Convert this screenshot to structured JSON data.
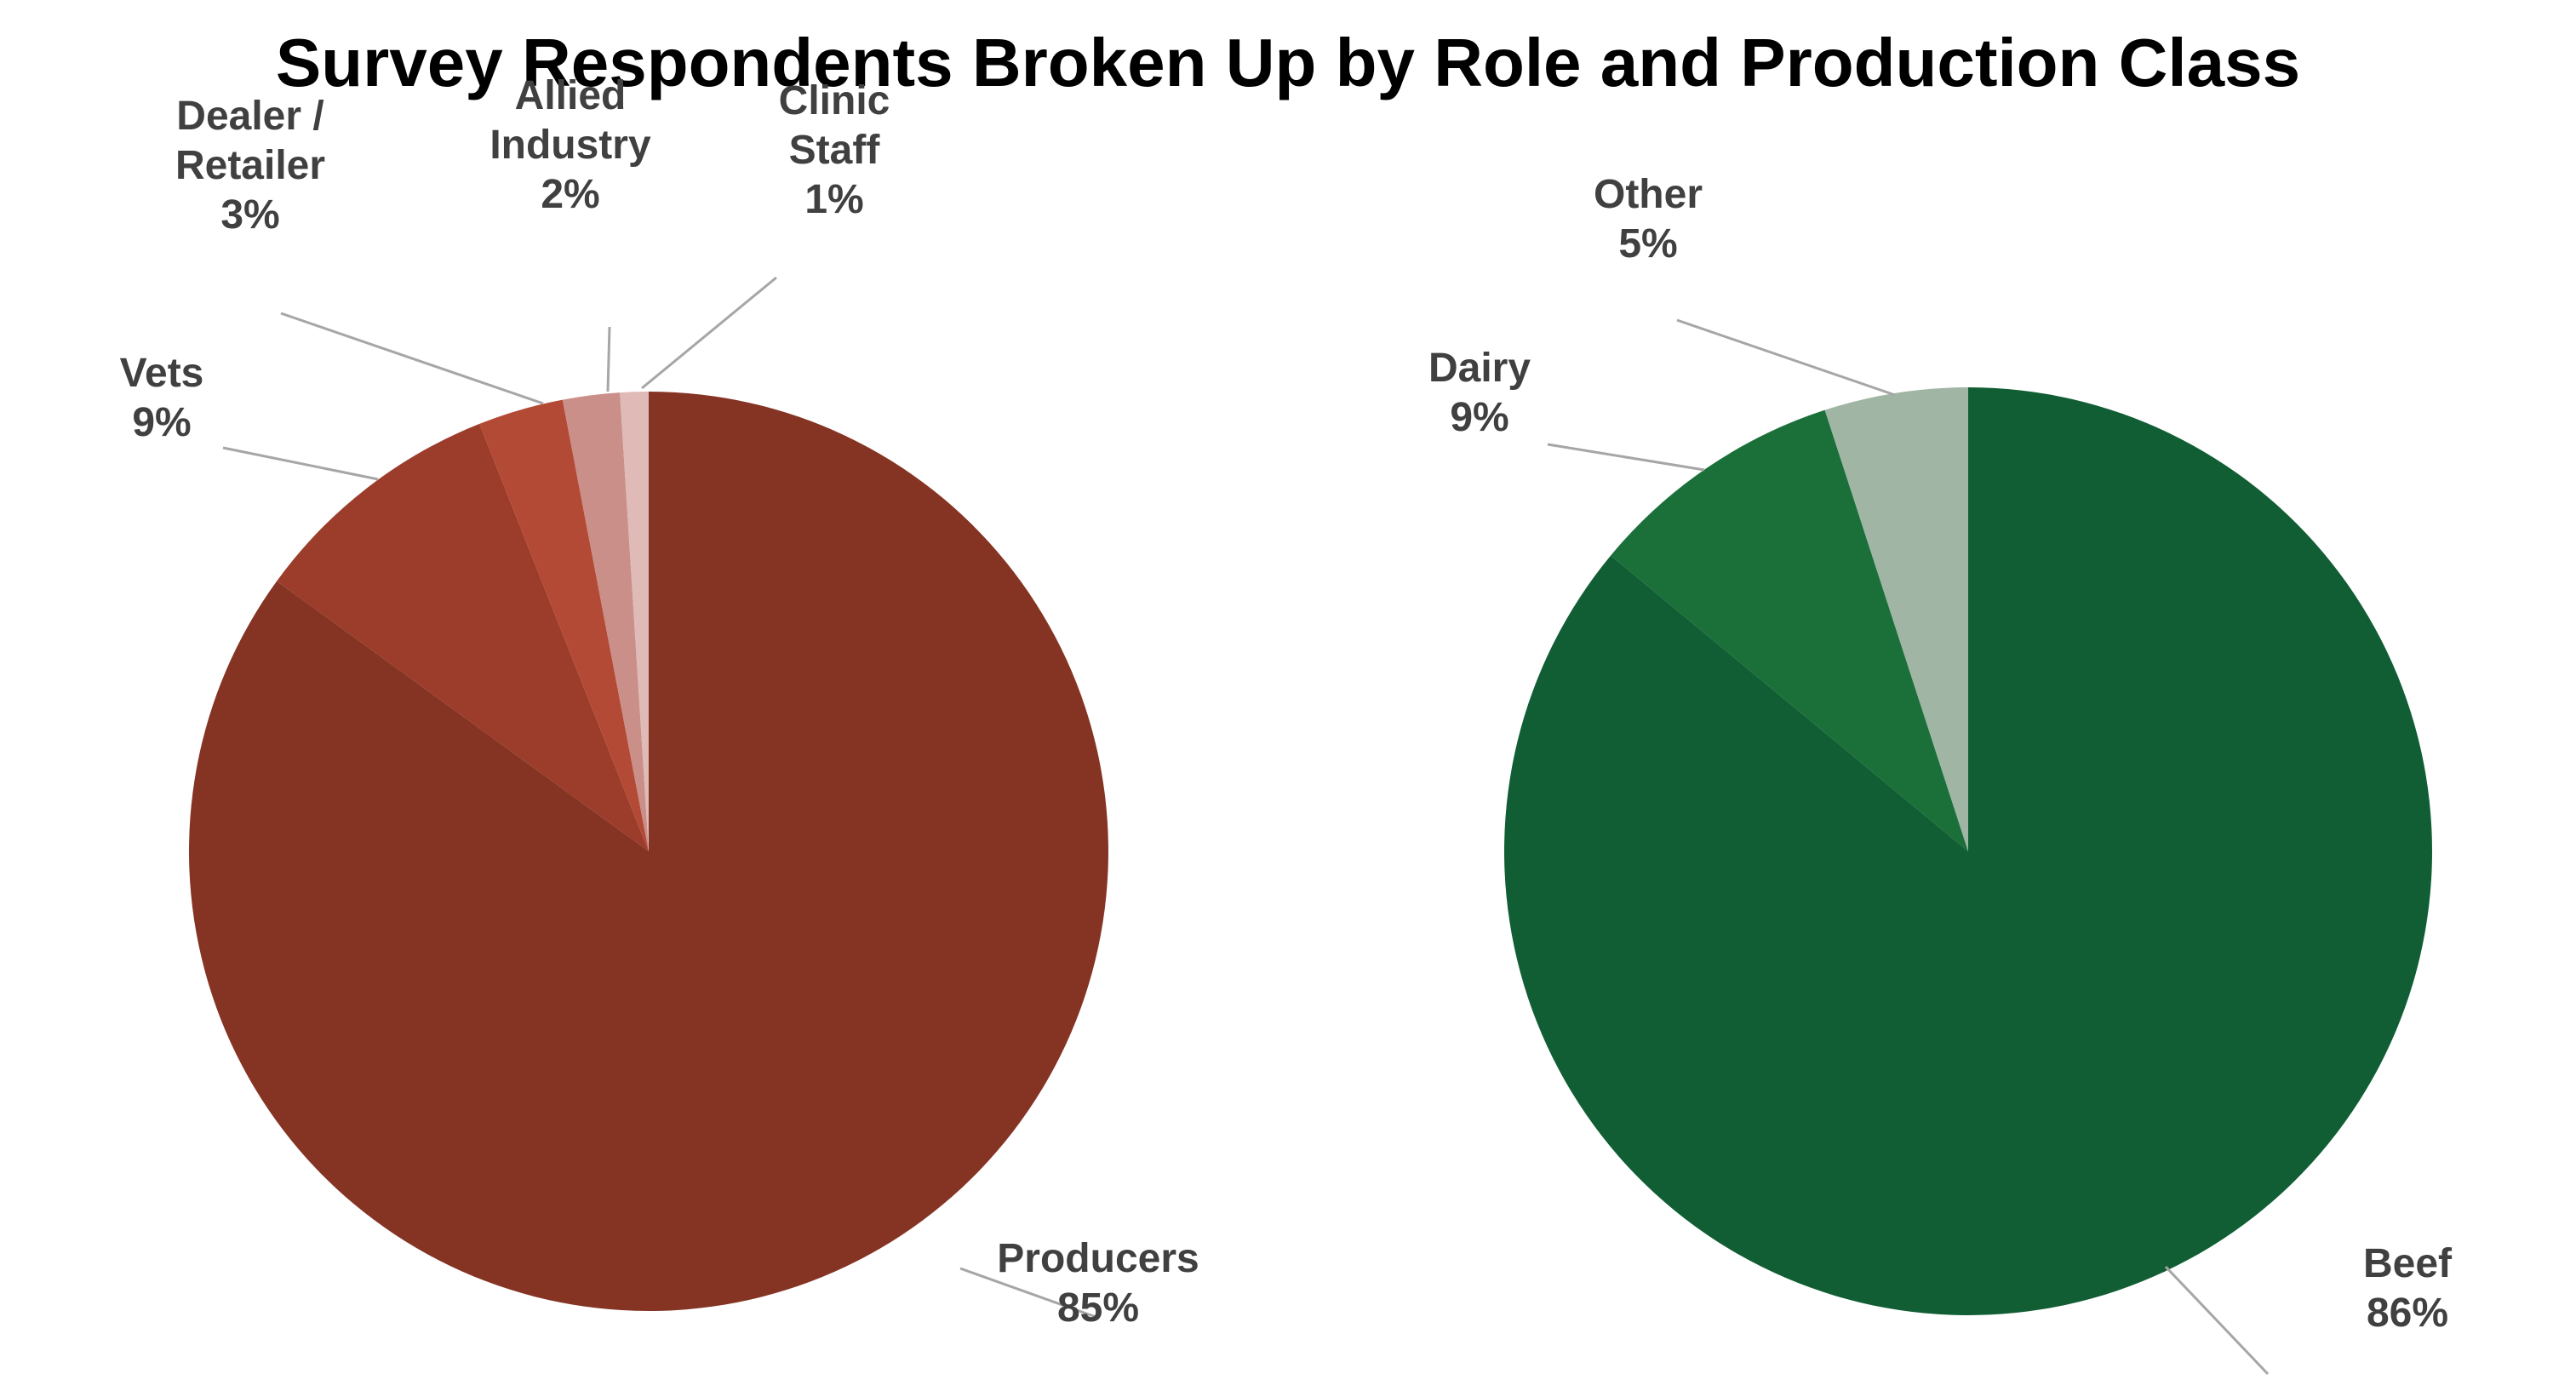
{
  "title": "Survey Respondents Broken Up by Role and Production Class",
  "chart_data": [
    {
      "type": "pie",
      "title": "",
      "start": "top",
      "direction": "clockwise",
      "slices": [
        {
          "label": "Producers",
          "value": 85,
          "value_label": "85%",
          "color": "#853424"
        },
        {
          "label": "Vets",
          "value": 9,
          "value_label": "9%",
          "color": "#9c3d2b"
        },
        {
          "label": "Dealer / Retailer",
          "value": 3,
          "value_label": "3%",
          "color": "#b34a35"
        },
        {
          "label": "Allied Industry",
          "value": 2,
          "value_label": "2%",
          "color": "#c98f88"
        },
        {
          "label": "Clinic Staff",
          "value": 1,
          "value_label": "1%",
          "color": "#dfbab6"
        }
      ]
    },
    {
      "type": "pie",
      "title": "",
      "start": "top",
      "direction": "clockwise",
      "slices": [
        {
          "label": "Beef",
          "value": 86,
          "value_label": "86%",
          "color": "#115e34"
        },
        {
          "label": "Dairy",
          "value": 9,
          "value_label": "9%",
          "color": "#1b7039"
        },
        {
          "label": "Other",
          "value": 5,
          "value_label": "5%",
          "color": "#a0b5a4"
        }
      ]
    }
  ]
}
